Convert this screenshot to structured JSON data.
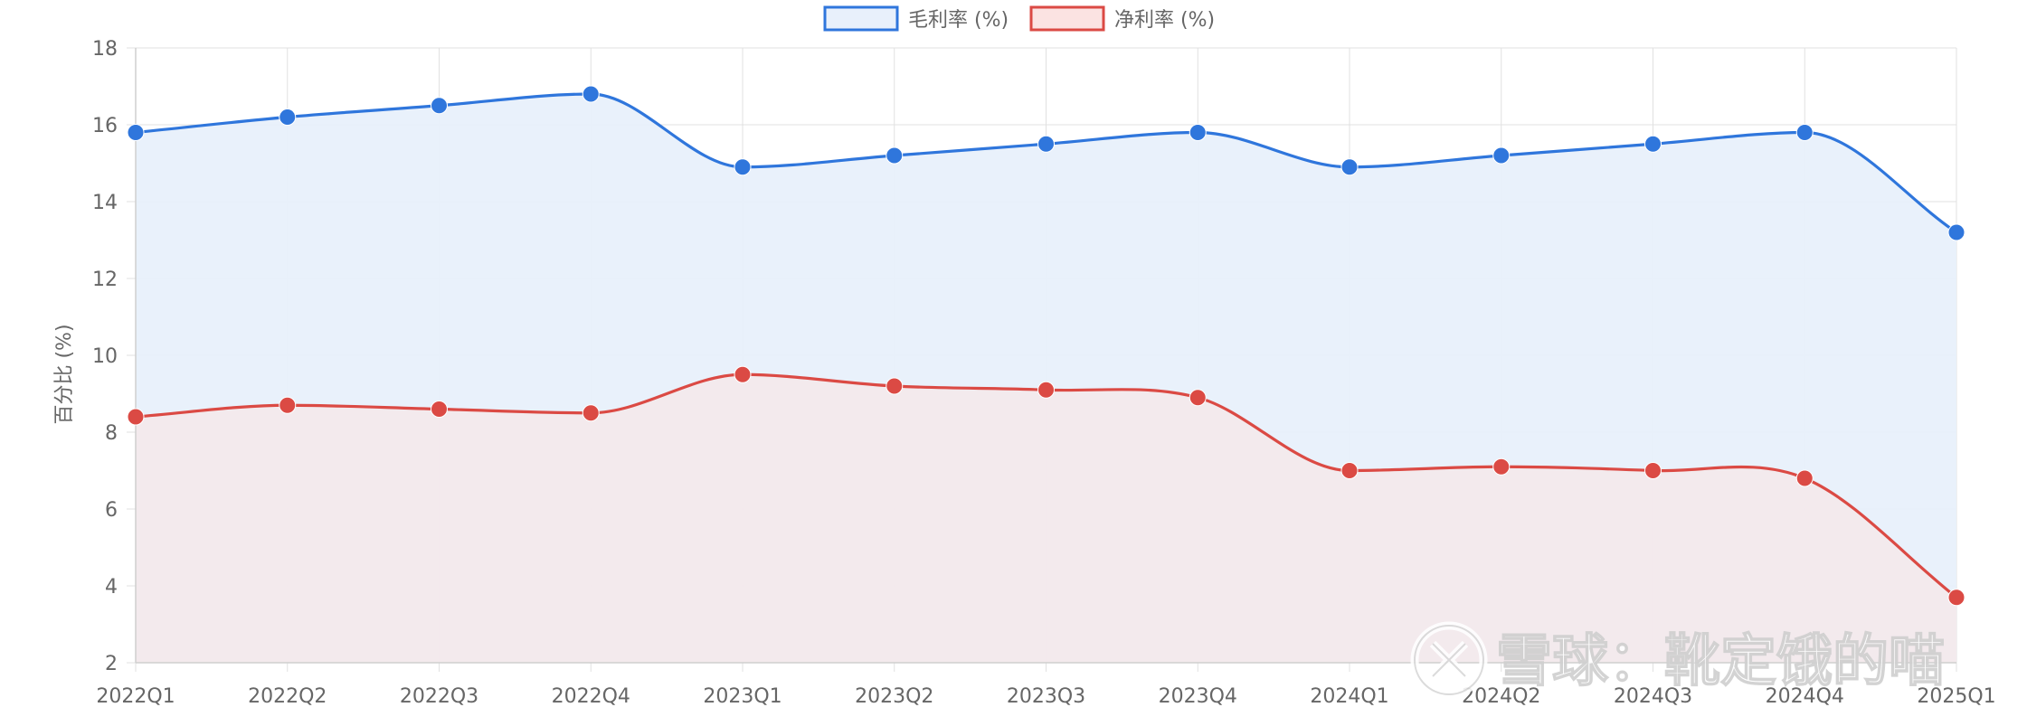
{
  "chart_data": {
    "type": "line",
    "categories": [
      "2022Q1",
      "2022Q2",
      "2022Q3",
      "2022Q4",
      "2023Q1",
      "2023Q2",
      "2023Q3",
      "2023Q4",
      "2024Q1",
      "2024Q2",
      "2024Q3",
      "2024Q4",
      "2025Q1"
    ],
    "series": [
      {
        "name": "毛利率 (%)",
        "color": "#2f76dc",
        "fill": "#e8f0fb",
        "values": [
          15.8,
          16.2,
          16.5,
          16.8,
          14.9,
          15.2,
          15.5,
          15.8,
          14.9,
          15.2,
          15.5,
          15.8,
          13.2
        ]
      },
      {
        "name": "净利率 (%)",
        "color": "#db4a44",
        "fill": "#fbe3e2",
        "values": [
          8.4,
          8.7,
          8.6,
          8.5,
          9.5,
          9.2,
          9.1,
          8.9,
          7.0,
          7.1,
          7.0,
          6.8,
          3.7
        ]
      }
    ],
    "title": "",
    "xlabel": "",
    "ylabel": "百分比 (%)",
    "ylim": [
      2,
      18
    ],
    "yticks": [
      2,
      4,
      6,
      8,
      10,
      12,
      14,
      16,
      18
    ],
    "grid": true,
    "legend_position": "top-center",
    "smooth": true,
    "filled_area": true
  },
  "watermark": {
    "text": "雪球：靴定饿的喵"
  }
}
